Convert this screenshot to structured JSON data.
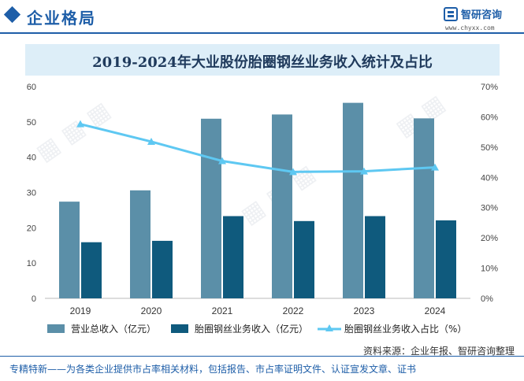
{
  "header": {
    "section_title": "企业格局",
    "logo_name": "智研咨询",
    "logo_url": "www.chyxx.com"
  },
  "chart_data": {
    "type": "bar",
    "title": "2019-2024年大业股份胎圈钢丝业务收入统计及占比",
    "categories": [
      "2019",
      "2020",
      "2021",
      "2022",
      "2023",
      "2024"
    ],
    "series": [
      {
        "name": "营业总收入（亿元）",
        "type": "bar",
        "axis": "left",
        "color": "#5b8fa8",
        "values": [
          27.4,
          30.6,
          50.9,
          52.1,
          55.4,
          51.0
        ]
      },
      {
        "name": "胎圈钢丝业务收入（亿元）",
        "type": "bar",
        "axis": "left",
        "color": "#0f5a7d",
        "values": [
          15.9,
          16.3,
          23.3,
          21.9,
          23.3,
          22.1
        ]
      },
      {
        "name": "胎圈钢丝业务收入占比（%）",
        "type": "line",
        "axis": "right",
        "color": "#5ec8f2",
        "values": [
          57.6,
          51.8,
          45.4,
          41.8,
          42.0,
          43.3
        ]
      }
    ],
    "y_left": {
      "ylim": [
        0,
        60
      ],
      "ticks": [
        "0",
        "10",
        "20",
        "30",
        "40",
        "50",
        "60"
      ]
    },
    "y_right": {
      "ylim": [
        0,
        70
      ],
      "ticks": [
        "0%",
        "10%",
        "20%",
        "30%",
        "40%",
        "50%",
        "60%",
        "70%"
      ]
    },
    "grid": false,
    "legend_position": "bottom"
  },
  "footer": {
    "source": "资料来源：企业年报、智研咨询整理",
    "note": "专精特新——为各类企业提供市占率相关材料，包括报告、市占率证明文件、认证宣发文章、证书"
  }
}
